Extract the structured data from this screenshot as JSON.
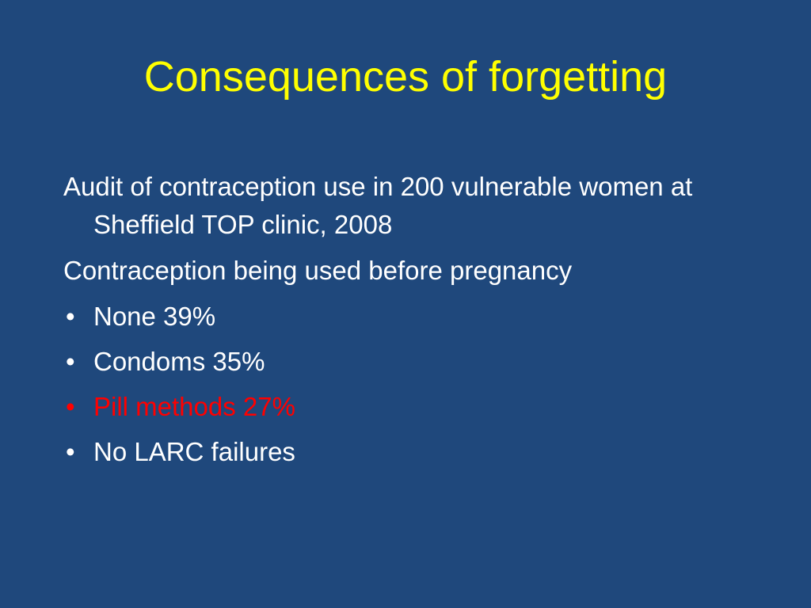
{
  "slide": {
    "title": "Consequences of forgetting",
    "paragraphs": [
      "Audit of contraception use in 200 vulnerable women at Sheffield TOP clinic, 2008",
      "Contraception being used before pregnancy"
    ],
    "bullet_symbol": "•",
    "bullets": [
      {
        "text": "None 39%"
      },
      {
        "text": "Condoms 35%"
      },
      {
        "text": "Pill methods 27%",
        "color": "#ff0000"
      },
      {
        "text": "No LARC failures"
      }
    ]
  },
  "colors": {
    "background": "#1f487c",
    "title": "#ffff00",
    "body_text": "#ffffff",
    "highlight": "#ff0000"
  }
}
